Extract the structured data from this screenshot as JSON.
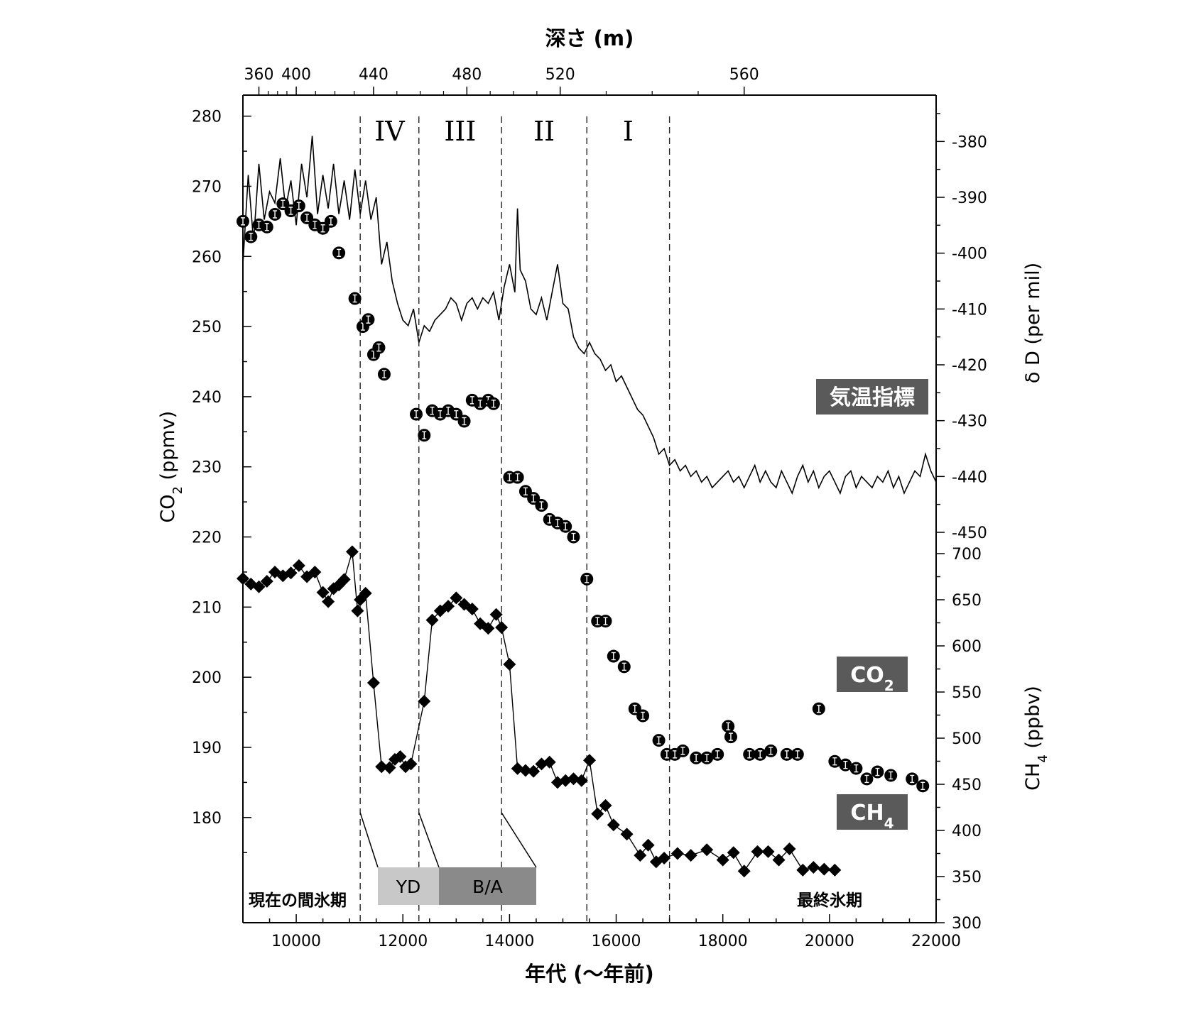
{
  "chart_data": {
    "type": "line",
    "x_axis": {
      "label": "年代 (〜年前)",
      "range": [
        9000,
        22000
      ],
      "ticks": [
        10000,
        12000,
        14000,
        16000,
        18000,
        20000,
        22000
      ]
    },
    "top_axis": {
      "label": "深さ (m)",
      "tick_positions_age": [
        9300,
        10000,
        11450,
        13200,
        14950,
        18400
      ],
      "tick_labels": [
        "360",
        "400",
        "440",
        "480",
        "520",
        "560"
      ]
    },
    "left_axis": {
      "label_main": "CO",
      "label_sub": "2",
      "label_unit": " (ppmv)",
      "range": [
        165,
        283
      ],
      "ticks": [
        180,
        190,
        200,
        210,
        220,
        230,
        240,
        250,
        260,
        270,
        280
      ]
    },
    "right_axis_top": {
      "label": "δ D (per mil)",
      "range": [
        -450,
        -375
      ],
      "ticks": [
        -380,
        -390,
        -400,
        -410,
        -420,
        -430,
        -440,
        -450
      ]
    },
    "right_axis_bottom": {
      "label_main": "CH",
      "label_sub": "4",
      "label_unit": " (ppbv)",
      "range": [
        300,
        700
      ],
      "ticks": [
        300,
        350,
        400,
        450,
        500,
        550,
        600,
        650,
        700
      ]
    },
    "periods": [
      {
        "label": "IV",
        "start": 11200,
        "end": 12300
      },
      {
        "label": "III",
        "start": 12300,
        "end": 13850
      },
      {
        "label": "II",
        "start": 13850,
        "end": 15450
      },
      {
        "label": "I",
        "start": 15450,
        "end": 17000
      }
    ],
    "boundaries": [
      11200,
      12300,
      13850,
      15450,
      17000
    ],
    "events": [
      {
        "label": "YD",
        "color": "#c8c8c8"
      },
      {
        "label": "B/A",
        "color": "#8a8a8a"
      }
    ],
    "annotations": {
      "present_interglacial": "現在の間氷期",
      "last_glacial": "最終氷期"
    },
    "series": [
      {
        "name": "気温指標",
        "axis": "right_top",
        "style": "line",
        "points": [
          [
            9000,
            -402
          ],
          [
            9100,
            -386
          ],
          [
            9200,
            -398
          ],
          [
            9300,
            -384
          ],
          [
            9400,
            -394
          ],
          [
            9500,
            -389
          ],
          [
            9600,
            -391
          ],
          [
            9700,
            -383
          ],
          [
            9800,
            -392
          ],
          [
            9900,
            -387
          ],
          [
            10000,
            -395
          ],
          [
            10100,
            -384
          ],
          [
            10200,
            -390
          ],
          [
            10300,
            -379
          ],
          [
            10400,
            -393
          ],
          [
            10500,
            -386
          ],
          [
            10600,
            -392
          ],
          [
            10700,
            -384
          ],
          [
            10800,
            -393
          ],
          [
            10900,
            -387
          ],
          [
            11000,
            -394
          ],
          [
            11100,
            -385
          ],
          [
            11200,
            -393
          ],
          [
            11300,
            -387
          ],
          [
            11400,
            -394
          ],
          [
            11500,
            -390
          ],
          [
            11600,
            -402
          ],
          [
            11700,
            -398
          ],
          [
            11800,
            -405
          ],
          [
            11900,
            -409
          ],
          [
            12000,
            -412
          ],
          [
            12100,
            -413
          ],
          [
            12200,
            -410
          ],
          [
            12300,
            -416
          ],
          [
            12400,
            -413
          ],
          [
            12500,
            -414
          ],
          [
            12600,
            -412
          ],
          [
            12700,
            -411
          ],
          [
            12800,
            -410
          ],
          [
            12900,
            -408
          ],
          [
            13000,
            -409
          ],
          [
            13100,
            -412
          ],
          [
            13200,
            -409
          ],
          [
            13300,
            -408
          ],
          [
            13400,
            -410
          ],
          [
            13500,
            -408
          ],
          [
            13600,
            -409
          ],
          [
            13700,
            -407
          ],
          [
            13800,
            -412
          ],
          [
            13900,
            -406
          ],
          [
            14000,
            -402
          ],
          [
            14100,
            -407
          ],
          [
            14150,
            -392
          ],
          [
            14200,
            -403
          ],
          [
            14300,
            -405
          ],
          [
            14400,
            -410
          ],
          [
            14500,
            -411
          ],
          [
            14600,
            -408
          ],
          [
            14700,
            -412
          ],
          [
            14800,
            -407
          ],
          [
            14900,
            -402
          ],
          [
            15000,
            -409
          ],
          [
            15100,
            -410
          ],
          [
            15200,
            -415
          ],
          [
            15300,
            -417
          ],
          [
            15400,
            -418
          ],
          [
            15500,
            -416
          ],
          [
            15600,
            -418
          ],
          [
            15700,
            -419
          ],
          [
            15800,
            -421
          ],
          [
            15900,
            -420
          ],
          [
            16000,
            -423
          ],
          [
            16100,
            -422
          ],
          [
            16200,
            -424
          ],
          [
            16300,
            -426
          ],
          [
            16400,
            -428
          ],
          [
            16500,
            -429
          ],
          [
            16600,
            -431
          ],
          [
            16700,
            -433
          ],
          [
            16800,
            -436
          ],
          [
            16900,
            -435
          ],
          [
            17000,
            -438
          ],
          [
            17100,
            -437
          ],
          [
            17200,
            -439
          ],
          [
            17300,
            -438
          ],
          [
            17400,
            -440
          ],
          [
            17500,
            -439
          ],
          [
            17600,
            -441
          ],
          [
            17700,
            -440
          ],
          [
            17800,
            -442
          ],
          [
            17900,
            -441
          ],
          [
            18000,
            -440
          ],
          [
            18100,
            -439
          ],
          [
            18200,
            -441
          ],
          [
            18300,
            -440
          ],
          [
            18400,
            -442
          ],
          [
            18500,
            -440
          ],
          [
            18600,
            -438
          ],
          [
            18700,
            -441
          ],
          [
            18800,
            -439
          ],
          [
            18900,
            -441
          ],
          [
            19000,
            -442
          ],
          [
            19100,
            -439
          ],
          [
            19200,
            -441
          ],
          [
            19300,
            -443
          ],
          [
            19400,
            -440
          ],
          [
            19500,
            -438
          ],
          [
            19600,
            -441
          ],
          [
            19700,
            -439
          ],
          [
            19800,
            -442
          ],
          [
            19900,
            -440
          ],
          [
            20000,
            -439
          ],
          [
            20100,
            -441
          ],
          [
            20200,
            -443
          ],
          [
            20300,
            -440
          ],
          [
            20400,
            -439
          ],
          [
            20500,
            -442
          ],
          [
            20600,
            -440
          ],
          [
            20700,
            -441
          ],
          [
            20800,
            -442
          ],
          [
            20900,
            -440
          ],
          [
            21000,
            -441
          ],
          [
            21100,
            -439
          ],
          [
            21200,
            -442
          ],
          [
            21300,
            -440
          ],
          [
            21400,
            -443
          ],
          [
            21500,
            -441
          ],
          [
            21600,
            -439
          ],
          [
            21700,
            -440
          ],
          [
            21800,
            -436
          ],
          [
            21900,
            -439
          ],
          [
            22000,
            -441
          ]
        ]
      },
      {
        "name": "CO₂",
        "axis": "left",
        "style": "circles",
        "points": [
          [
            9000,
            265.0
          ],
          [
            9150,
            262.8
          ],
          [
            9300,
            264.5
          ],
          [
            9450,
            264.2
          ],
          [
            9600,
            266.0
          ],
          [
            9750,
            267.5
          ],
          [
            9900,
            266.5
          ],
          [
            10050,
            267.2
          ],
          [
            10200,
            265.5
          ],
          [
            10350,
            264.5
          ],
          [
            10500,
            264.0
          ],
          [
            10650,
            265.0
          ],
          [
            10800,
            260.5
          ],
          [
            11100,
            254.0
          ],
          [
            11250,
            250.0
          ],
          [
            11350,
            251.0
          ],
          [
            11450,
            246.0
          ],
          [
            11550,
            247.0
          ],
          [
            11650,
            243.2
          ],
          [
            12250,
            237.5
          ],
          [
            12400,
            234.5
          ],
          [
            12550,
            238.0
          ],
          [
            12700,
            237.5
          ],
          [
            12850,
            238.0
          ],
          [
            13000,
            237.5
          ],
          [
            13150,
            236.5
          ],
          [
            13300,
            239.5
          ],
          [
            13450,
            239.0
          ],
          [
            13600,
            239.5
          ],
          [
            13700,
            239.0
          ],
          [
            14000,
            228.5
          ],
          [
            14150,
            228.5
          ],
          [
            14300,
            226.5
          ],
          [
            14450,
            225.5
          ],
          [
            14600,
            224.5
          ],
          [
            14750,
            222.5
          ],
          [
            14900,
            222.0
          ],
          [
            15050,
            221.5
          ],
          [
            15200,
            220.0
          ],
          [
            15450,
            214.0
          ],
          [
            15650,
            208.0
          ],
          [
            15800,
            208.0
          ],
          [
            15950,
            203.0
          ],
          [
            16150,
            201.5
          ],
          [
            16350,
            195.5
          ],
          [
            16500,
            194.5
          ],
          [
            16800,
            191.0
          ],
          [
            16950,
            189.0
          ],
          [
            17100,
            189.0
          ],
          [
            17250,
            189.5
          ],
          [
            17500,
            188.5
          ],
          [
            17700,
            188.5
          ],
          [
            17900,
            189.0
          ],
          [
            18100,
            193.0
          ],
          [
            18150,
            191.5
          ],
          [
            18500,
            189.0
          ],
          [
            18700,
            189.0
          ],
          [
            18900,
            189.5
          ],
          [
            19200,
            189.0
          ],
          [
            19400,
            189.0
          ],
          [
            19800,
            195.5
          ],
          [
            20100,
            188.0
          ],
          [
            20300,
            187.5
          ],
          [
            20500,
            187.0
          ],
          [
            20700,
            185.5
          ],
          [
            20900,
            186.5
          ],
          [
            21150,
            186.0
          ],
          [
            21550,
            185.5
          ],
          [
            21750,
            184.5
          ]
        ]
      },
      {
        "name": "CH₄",
        "axis": "right_bottom",
        "style": "diamonds-line",
        "points": [
          [
            9000,
            673
          ],
          [
            9150,
            667
          ],
          [
            9300,
            664
          ],
          [
            9450,
            670
          ],
          [
            9600,
            680
          ],
          [
            9750,
            676
          ],
          [
            9900,
            679
          ],
          [
            10050,
            687
          ],
          [
            10200,
            675
          ],
          [
            10350,
            680
          ],
          [
            10500,
            658
          ],
          [
            10600,
            648
          ],
          [
            10700,
            662
          ],
          [
            10800,
            666
          ],
          [
            10900,
            672
          ],
          [
            11050,
            702
          ],
          [
            11150,
            638
          ],
          [
            11200,
            650
          ],
          [
            11300,
            657
          ],
          [
            11450,
            560
          ],
          [
            11600,
            469
          ],
          [
            11750,
            468
          ],
          [
            11850,
            477
          ],
          [
            11950,
            480
          ],
          [
            12050,
            469
          ],
          [
            12150,
            472
          ],
          [
            12400,
            540
          ],
          [
            12550,
            628
          ],
          [
            12700,
            638
          ],
          [
            12850,
            643
          ],
          [
            13000,
            652
          ],
          [
            13150,
            645
          ],
          [
            13300,
            640
          ],
          [
            13450,
            624
          ],
          [
            13600,
            619
          ],
          [
            13750,
            634
          ],
          [
            13850,
            620
          ],
          [
            14000,
            580
          ],
          [
            14150,
            467
          ],
          [
            14300,
            465
          ],
          [
            14450,
            464
          ],
          [
            14600,
            472
          ],
          [
            14750,
            474
          ],
          [
            14900,
            452
          ],
          [
            15050,
            454
          ],
          [
            15200,
            456
          ],
          [
            15350,
            454
          ],
          [
            15500,
            476
          ],
          [
            15650,
            418
          ],
          [
            15800,
            427
          ],
          [
            15950,
            406
          ],
          [
            16200,
            396
          ],
          [
            16450,
            373
          ],
          [
            16600,
            384
          ],
          [
            16750,
            366
          ],
          [
            16900,
            370
          ],
          [
            17150,
            375
          ],
          [
            17400,
            373
          ],
          [
            17700,
            379
          ],
          [
            18000,
            368
          ],
          [
            18200,
            376
          ],
          [
            18400,
            356
          ],
          [
            18650,
            377
          ],
          [
            18850,
            377
          ],
          [
            19050,
            368
          ],
          [
            19250,
            380
          ],
          [
            19500,
            357
          ],
          [
            19700,
            360
          ],
          [
            19900,
            358
          ],
          [
            20100,
            357
          ]
        ]
      }
    ],
    "series_labels": [
      "気温指標",
      "CO",
      "CH"
    ],
    "series_label_subs": [
      "",
      "2",
      "4"
    ]
  }
}
